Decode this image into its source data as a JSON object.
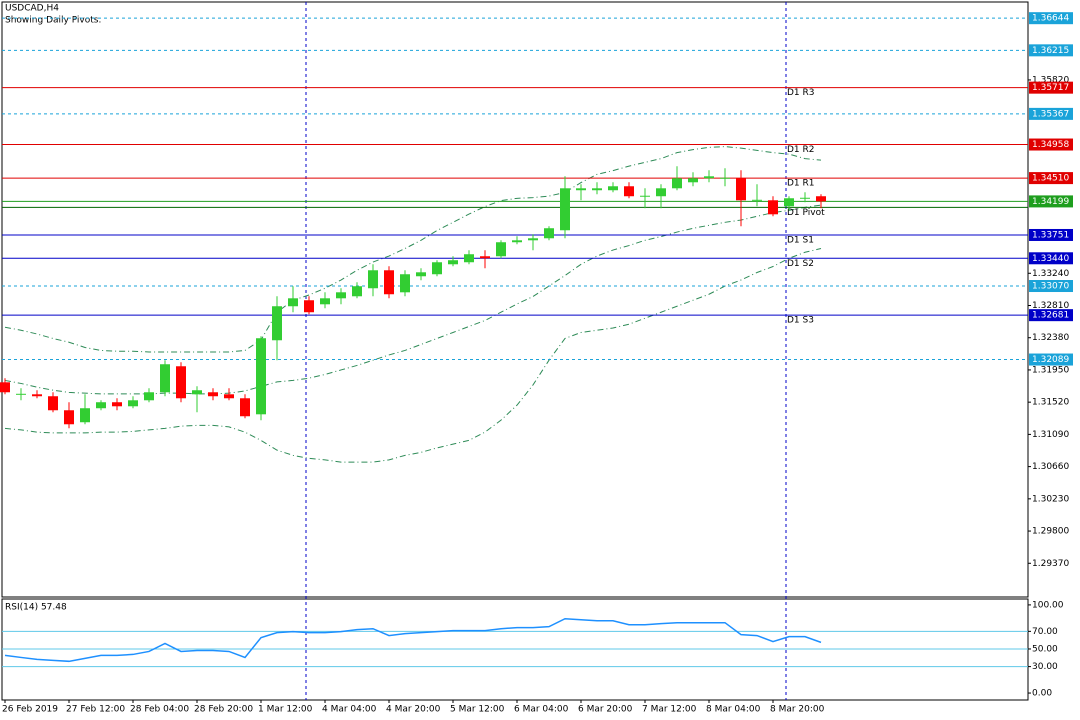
{
  "chart_data": {
    "type": "candlestick",
    "title": "USDCAD,H4",
    "subtitle": "Showing Daily Pivots.",
    "categories": [
      "26 Feb 2019",
      null,
      null,
      null,
      "27 Feb 12:00",
      null,
      null,
      null,
      "28 Feb 04:00",
      null,
      null,
      null,
      "28 Feb 20:00",
      null,
      null,
      null,
      "1 Mar 12:00",
      null,
      null,
      null,
      "4 Mar 04:00",
      null,
      null,
      null,
      "4 Mar 20:00",
      null,
      null,
      null,
      "5 Mar 12:00",
      null,
      null,
      null,
      "6 Mar 04:00",
      null,
      null,
      null,
      "6 Mar 20:00",
      null,
      null,
      null,
      "7 Mar 12:00",
      null,
      null,
      null,
      "8 Mar 04:00",
      null,
      null,
      null,
      "8 Mar 20:00",
      null,
      null,
      null
    ],
    "open": [
      1.31785,
      1.31625,
      1.31625,
      1.31599,
      1.31412,
      1.31252,
      1.31439,
      1.31519,
      1.31465,
      1.31545,
      1.31652,
      1.31999,
      1.31625,
      1.31652,
      1.31625,
      1.31572,
      1.31358,
      1.32346,
      1.328,
      1.3288,
      1.32826,
      1.32906,
      1.32933,
      1.3304,
      1.3328,
      1.32986,
      1.332,
      1.33227,
      1.3336,
      1.33387,
      1.33467,
      1.33467,
      1.33654,
      1.3368,
      1.33707,
      1.33814,
      1.34348,
      1.34348,
      1.34348,
      1.34401,
      1.34268,
      1.34268,
      1.34374,
      1.34454,
      1.34508,
      1.34508,
      1.34508,
      1.34214,
      1.34214,
      1.34134,
      1.34241,
      1.34268
    ],
    "high": [
      1.31839,
      1.31705,
      1.31679,
      1.31652,
      1.31519,
      1.31625,
      1.31545,
      1.31572,
      1.31599,
      1.31705,
      1.32079,
      1.32052,
      1.31732,
      1.31705,
      1.31705,
      1.31625,
      1.32399,
      1.32933,
      1.33067,
      1.32933,
      1.32986,
      1.3304,
      1.3312,
      1.3336,
      1.33333,
      1.3328,
      1.33307,
      1.33414,
      1.33467,
      1.33547,
      1.33547,
      1.3368,
      1.33734,
      1.3376,
      1.33867,
      1.34534,
      1.34428,
      1.34454,
      1.34454,
      1.34454,
      1.34374,
      1.34428,
      1.34668,
      1.34588,
      1.34614,
      1.34641,
      1.34614,
      1.34428,
      1.34268,
      1.34268,
      1.34321,
      1.34294
    ],
    "low": [
      1.31625,
      1.31545,
      1.31572,
      1.31385,
      1.31172,
      1.31225,
      1.31412,
      1.31412,
      1.31439,
      1.31519,
      1.31599,
      1.31519,
      1.31385,
      1.31545,
      1.31545,
      1.31305,
      1.31278,
      1.32079,
      1.3272,
      1.32693,
      1.32773,
      1.32826,
      1.32906,
      1.32933,
      1.32906,
      1.32933,
      1.33147,
      1.332,
      1.33333,
      1.3336,
      1.33307,
      1.3344,
      1.33627,
      1.33547,
      1.3368,
      1.33707,
      1.34214,
      1.34294,
      1.34321,
      1.34241,
      1.34107,
      1.34107,
      1.34348,
      1.34401,
      1.34454,
      1.34401,
      1.33867,
      1.34134,
      1.34001,
      1.34081,
      1.34187,
      1.34107
    ],
    "close": [
      1.31652,
      1.31625,
      1.31599,
      1.31412,
      1.31225,
      1.31439,
      1.31519,
      1.31465,
      1.31545,
      1.31652,
      1.32026,
      1.31572,
      1.31679,
      1.31599,
      1.31572,
      1.31332,
      1.32373,
      1.328,
      1.32906,
      1.3272,
      1.32906,
      1.32986,
      1.33067,
      1.3328,
      1.3296,
      1.33227,
      1.33253,
      1.33387,
      1.33414,
      1.33494,
      1.3344,
      1.33654,
      1.3368,
      1.33707,
      1.33841,
      1.34374,
      1.34374,
      1.34374,
      1.34401,
      1.34268,
      1.34268,
      1.34374,
      1.34508,
      1.34508,
      1.34534,
      1.34508,
      1.34214,
      1.34214,
      1.34027,
      1.34241,
      1.34241,
      1.34199
    ],
    "up_color": "#32cd32",
    "down_color": "#ff0000",
    "bands": {
      "color": "#2e8b57",
      "upper": [
        1.3252,
        1.3248,
        1.3243,
        1.3237,
        1.3232,
        1.3225,
        1.3221,
        1.322,
        1.322,
        1.3219,
        1.3219,
        1.3219,
        1.3219,
        1.3219,
        1.3219,
        1.3221,
        1.3235,
        1.3272,
        1.3288,
        1.3295,
        1.3304,
        1.3315,
        1.3328,
        1.3339,
        1.3347,
        1.3357,
        1.3368,
        1.3381,
        1.3392,
        1.3403,
        1.3413,
        1.3421,
        1.3424,
        1.3425,
        1.3427,
        1.3432,
        1.3445,
        1.3456,
        1.3461,
        1.3467,
        1.3472,
        1.3477,
        1.3485,
        1.3489,
        1.3492,
        1.3493,
        1.3491,
        1.3488,
        1.3485,
        1.3483,
        1.3477,
        1.3475
      ],
      "middle": [
        1.3181,
        1.3177,
        1.3172,
        1.3168,
        1.3165,
        1.3164,
        1.3163,
        1.3163,
        1.3163,
        1.3163,
        1.3164,
        1.3164,
        1.3163,
        1.3163,
        1.3164,
        1.3167,
        1.3173,
        1.3179,
        1.3181,
        1.3184,
        1.3189,
        1.3195,
        1.3201,
        1.3208,
        1.3215,
        1.3221,
        1.3229,
        1.3237,
        1.3245,
        1.3253,
        1.3261,
        1.3272,
        1.3283,
        1.3293,
        1.3307,
        1.3321,
        1.3336,
        1.3347,
        1.3355,
        1.3361,
        1.3368,
        1.3373,
        1.3379,
        1.3384,
        1.3388,
        1.3392,
        1.3395,
        1.34,
        1.3405,
        1.3408,
        1.3412,
        1.3415
      ],
      "lower": [
        1.3117,
        1.3115,
        1.3112,
        1.3111,
        1.3111,
        1.3111,
        1.3112,
        1.3112,
        1.3113,
        1.3115,
        1.3117,
        1.312,
        1.3121,
        1.3121,
        1.3119,
        1.3112,
        1.3101,
        1.3088,
        1.3081,
        1.3077,
        1.3075,
        1.3072,
        1.3072,
        1.3072,
        1.3075,
        1.3081,
        1.3085,
        1.3091,
        1.3096,
        1.3101,
        1.3112,
        1.3128,
        1.3148,
        1.3175,
        1.3208,
        1.3237,
        1.3245,
        1.3248,
        1.3251,
        1.3256,
        1.3264,
        1.3272,
        1.328,
        1.3288,
        1.3296,
        1.3307,
        1.3315,
        1.3325,
        1.3333,
        1.3344,
        1.3352,
        1.3357
      ]
    },
    "ylim": [
      1.2892,
      1.3686
    ],
    "yticks": [
      {
        "value": 1.3582,
        "label": "1.35820"
      },
      {
        "value": 1.3324,
        "label": "1.33240"
      },
      {
        "value": 1.3281,
        "label": "1.32810"
      },
      {
        "value": 1.3238,
        "label": "1.32380"
      },
      {
        "value": 1.3195,
        "label": "1.31950"
      },
      {
        "value": 1.3152,
        "label": "1.31520"
      },
      {
        "value": 1.3109,
        "label": "1.31090"
      },
      {
        "value": 1.3066,
        "label": "1.30660"
      },
      {
        "value": 1.3023,
        "label": "1.30230"
      },
      {
        "value": 1.298,
        "label": "1.29800"
      },
      {
        "value": 1.2937,
        "label": "1.29370"
      }
    ],
    "levels": [
      {
        "value": 1.36644,
        "color": "#1aa3d9",
        "style": "dashed",
        "tag": true
      },
      {
        "value": 1.36215,
        "color": "#1aa3d9",
        "style": "dashed",
        "tag": true
      },
      {
        "value": 1.35717,
        "color": "#e00000",
        "style": "solid",
        "tag": true,
        "name": "D1 R3"
      },
      {
        "value": 1.35367,
        "color": "#1aa3d9",
        "style": "dashed",
        "tag": true
      },
      {
        "value": 1.34958,
        "color": "#e00000",
        "style": "solid",
        "tag": true,
        "name": "D1 R2"
      },
      {
        "value": 1.3451,
        "label": "1.34510",
        "color": "#e00000",
        "style": "solid",
        "tag": true,
        "name": "D1 R1"
      },
      {
        "value": 1.34199,
        "color": "#1e9e1e",
        "style": "solid",
        "tag": true
      },
      {
        "value": 1.3412,
        "color": "#006400",
        "style": "solid",
        "tag": false,
        "name": "D1 Pivot"
      },
      {
        "value": 1.33751,
        "color": "#0000c8",
        "style": "solid",
        "tag": true,
        "name": "D1 S1"
      },
      {
        "value": 1.3344,
        "label": "1.33440",
        "color": "#0000c8",
        "style": "solid",
        "tag": true,
        "name": "D1 S2"
      },
      {
        "value": 1.3307,
        "label": "1.33070",
        "color": "#1aa3d9",
        "style": "dashed",
        "tag": true
      },
      {
        "value": 1.32681,
        "color": "#0000c8",
        "style": "solid",
        "tag": true,
        "name": "D1 S3"
      },
      {
        "value": 1.32089,
        "color": "#1aa3d9",
        "style": "dashed",
        "tag": true
      }
    ],
    "rsi": {
      "title": "RSI(14) 57.48",
      "color": "#1e90ff",
      "level_color": "#5fc8e8",
      "values": [
        42.7,
        40.4,
        38.2,
        37.1,
        36.0,
        39.3,
        42.7,
        42.7,
        43.8,
        47.2,
        56.2,
        47.2,
        48.3,
        48.3,
        47.2,
        40.4,
        62.9,
        68.5,
        69.7,
        68.5,
        68.5,
        69.7,
        71.9,
        73.0,
        65.2,
        67.4,
        68.5,
        69.7,
        70.8,
        70.8,
        70.8,
        73.0,
        74.2,
        74.2,
        75.3,
        84.3,
        83.1,
        82.0,
        82.0,
        77.5,
        77.5,
        78.7,
        79.8,
        79.8,
        79.8,
        79.8,
        66.3,
        65.2,
        58.4,
        64.0,
        64.0,
        57.48
      ],
      "ylim": [
        -7.9,
        106.7
      ],
      "yticks": [
        {
          "value": 100,
          "label": "100.00"
        },
        {
          "value": 70,
          "label": "70.00"
        },
        {
          "value": 50,
          "label": "50.00"
        },
        {
          "value": 30,
          "label": "30.00"
        },
        {
          "value": 0,
          "label": "0.00"
        }
      ],
      "levels": [
        70,
        50,
        30
      ]
    }
  }
}
